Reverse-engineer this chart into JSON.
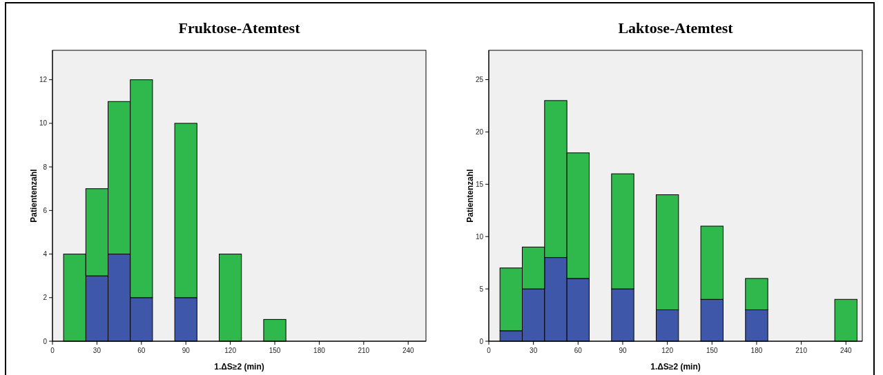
{
  "chart_data": [
    {
      "type": "bar",
      "title": "Fruktose-Atemtest",
      "xlabel": "1.ΔS≥2 (min)",
      "ylabel": "Patientenzahl",
      "x": [
        15,
        30,
        45,
        60,
        90,
        120,
        150
      ],
      "stacked": true,
      "xlim": [
        0,
        252
      ],
      "xticks": [
        0,
        30,
        60,
        90,
        120,
        150,
        180,
        210,
        240
      ],
      "ylim": [
        0,
        13.35
      ],
      "yticks": [
        0,
        2,
        4,
        6,
        8,
        10,
        12
      ],
      "series": [
        {
          "color": "#3f57a9",
          "values": [
            0,
            3,
            4,
            2,
            2,
            0,
            0
          ]
        },
        {
          "color": "#2fb84b",
          "values": [
            4,
            4,
            7,
            10,
            8,
            4,
            1
          ]
        }
      ]
    },
    {
      "type": "bar",
      "title": "Laktose-Atemtest",
      "xlabel": "1.ΔS≥2 (min)",
      "ylabel": "Patientenzahl",
      "x": [
        15,
        30,
        45,
        60,
        90,
        120,
        150,
        180,
        240
      ],
      "stacked": true,
      "xlim": [
        0,
        251
      ],
      "xticks": [
        0,
        30,
        60,
        90,
        120,
        150,
        180,
        210,
        240
      ],
      "ylim": [
        0,
        27.8
      ],
      "yticks": [
        0,
        5,
        10,
        15,
        20,
        25
      ],
      "series": [
        {
          "color": "#3f57a9",
          "values": [
            1,
            5,
            8,
            6,
            5,
            3,
            4,
            3,
            0
          ]
        },
        {
          "color": "#2fb84b",
          "values": [
            6,
            4,
            15,
            12,
            11,
            11,
            7,
            3,
            4
          ]
        }
      ]
    }
  ]
}
